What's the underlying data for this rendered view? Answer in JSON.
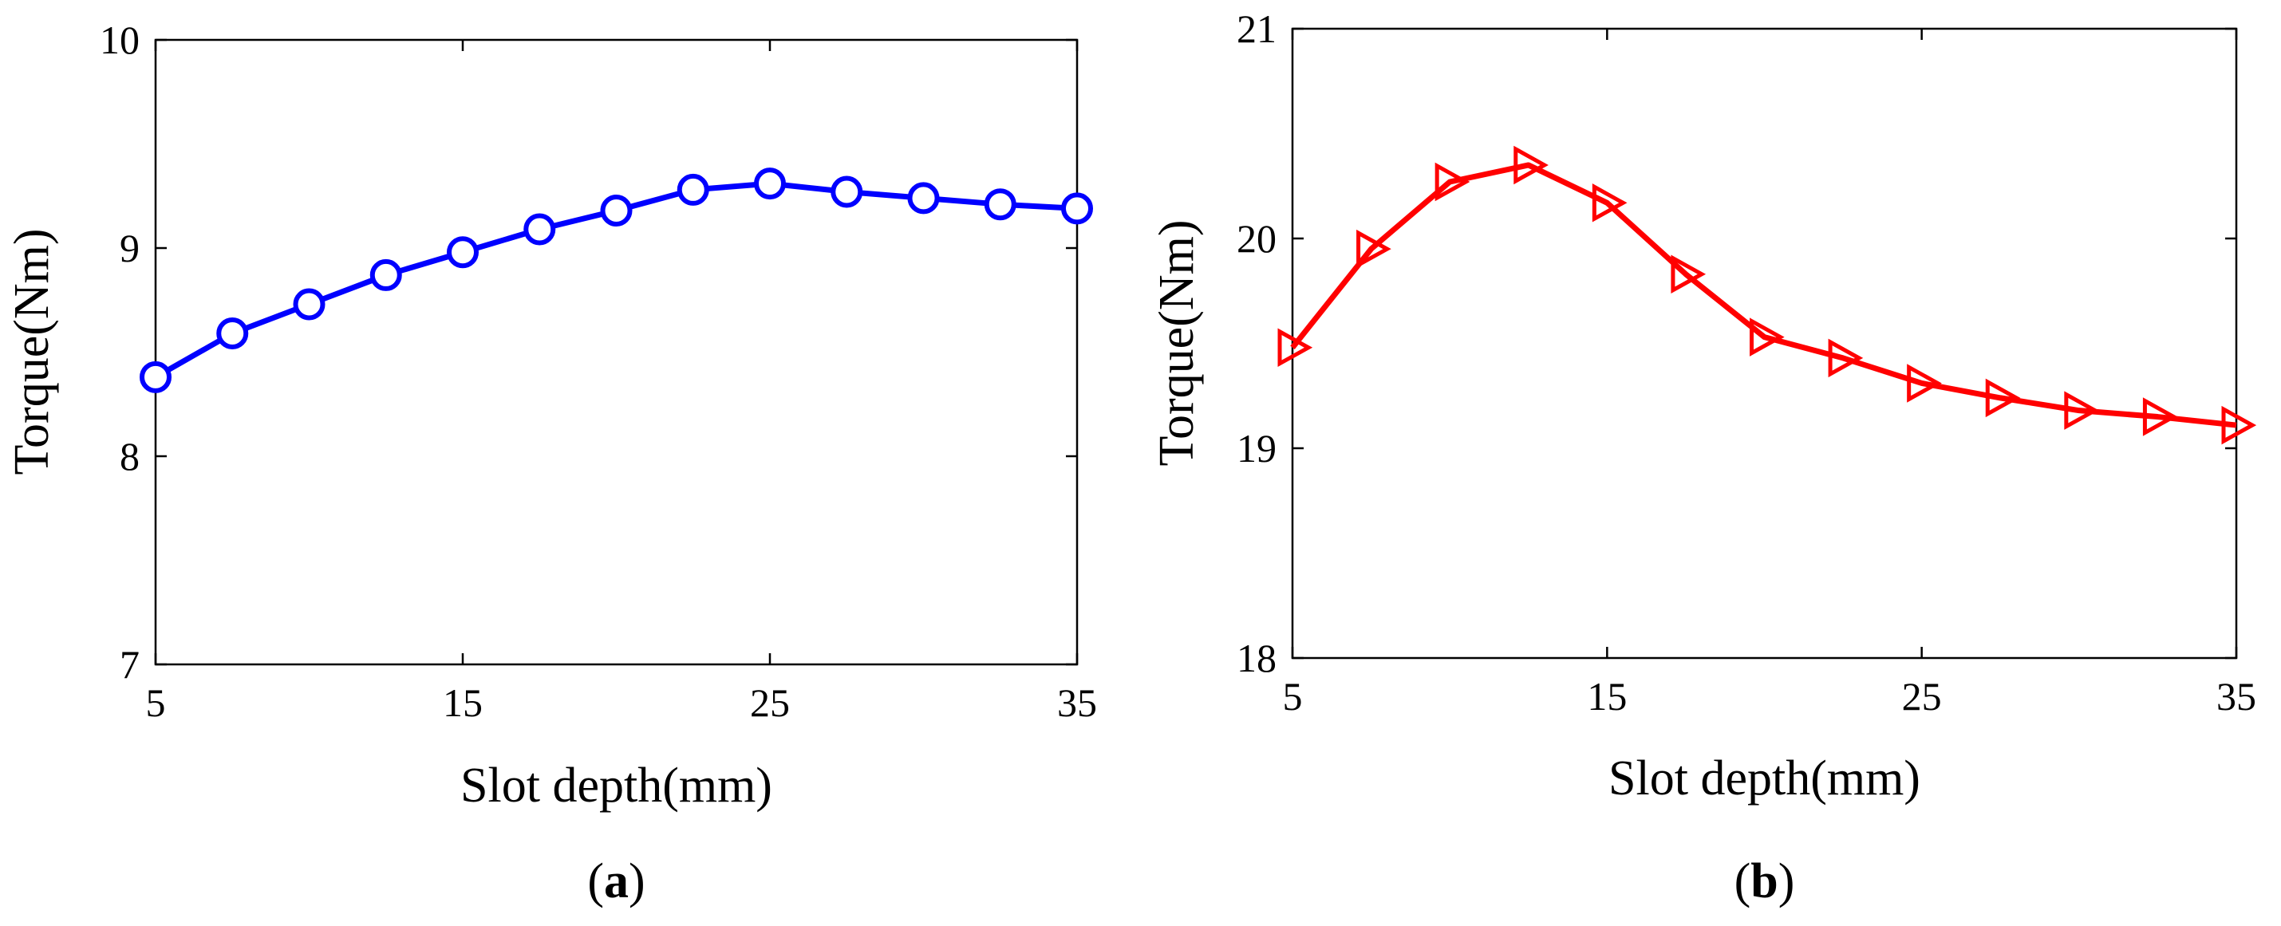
{
  "chart_data": [
    {
      "type": "line",
      "panel_label": "(a)",
      "panel_letter": "a",
      "xlabel": "Slot depth(mm)",
      "ylabel": "Torque(Nm)",
      "xlim": [
        5,
        35
      ],
      "ylim": [
        7,
        10
      ],
      "xticks": [
        5,
        15,
        25,
        35
      ],
      "yticks": [
        7,
        8,
        9,
        10
      ],
      "grid": false,
      "color": "#0000ff",
      "marker": "circle",
      "x": [
        5,
        7.5,
        10,
        12.5,
        15,
        17.5,
        20,
        22.5,
        25,
        27.5,
        30,
        32.5,
        35
      ],
      "values": [
        8.38,
        8.59,
        8.73,
        8.87,
        8.98,
        9.09,
        9.18,
        9.28,
        9.31,
        9.27,
        9.24,
        9.21,
        9.19
      ]
    },
    {
      "type": "line",
      "panel_label": "(b)",
      "panel_letter": "b",
      "xlabel": "Slot depth(mm)",
      "ylabel": "Torque(Nm)",
      "xlim": [
        5,
        35
      ],
      "ylim": [
        18,
        21
      ],
      "xticks": [
        5,
        15,
        25,
        35
      ],
      "yticks": [
        18,
        19,
        20,
        21
      ],
      "grid": false,
      "color": "#ff0000",
      "marker": "triangle-right",
      "x": [
        5,
        7.5,
        10,
        12.5,
        15,
        17.5,
        20,
        22.5,
        25,
        27.5,
        30,
        32.5,
        35
      ],
      "values": [
        19.48,
        19.95,
        20.27,
        20.35,
        20.17,
        19.83,
        19.53,
        19.43,
        19.31,
        19.24,
        19.18,
        19.15,
        19.11
      ]
    }
  ]
}
